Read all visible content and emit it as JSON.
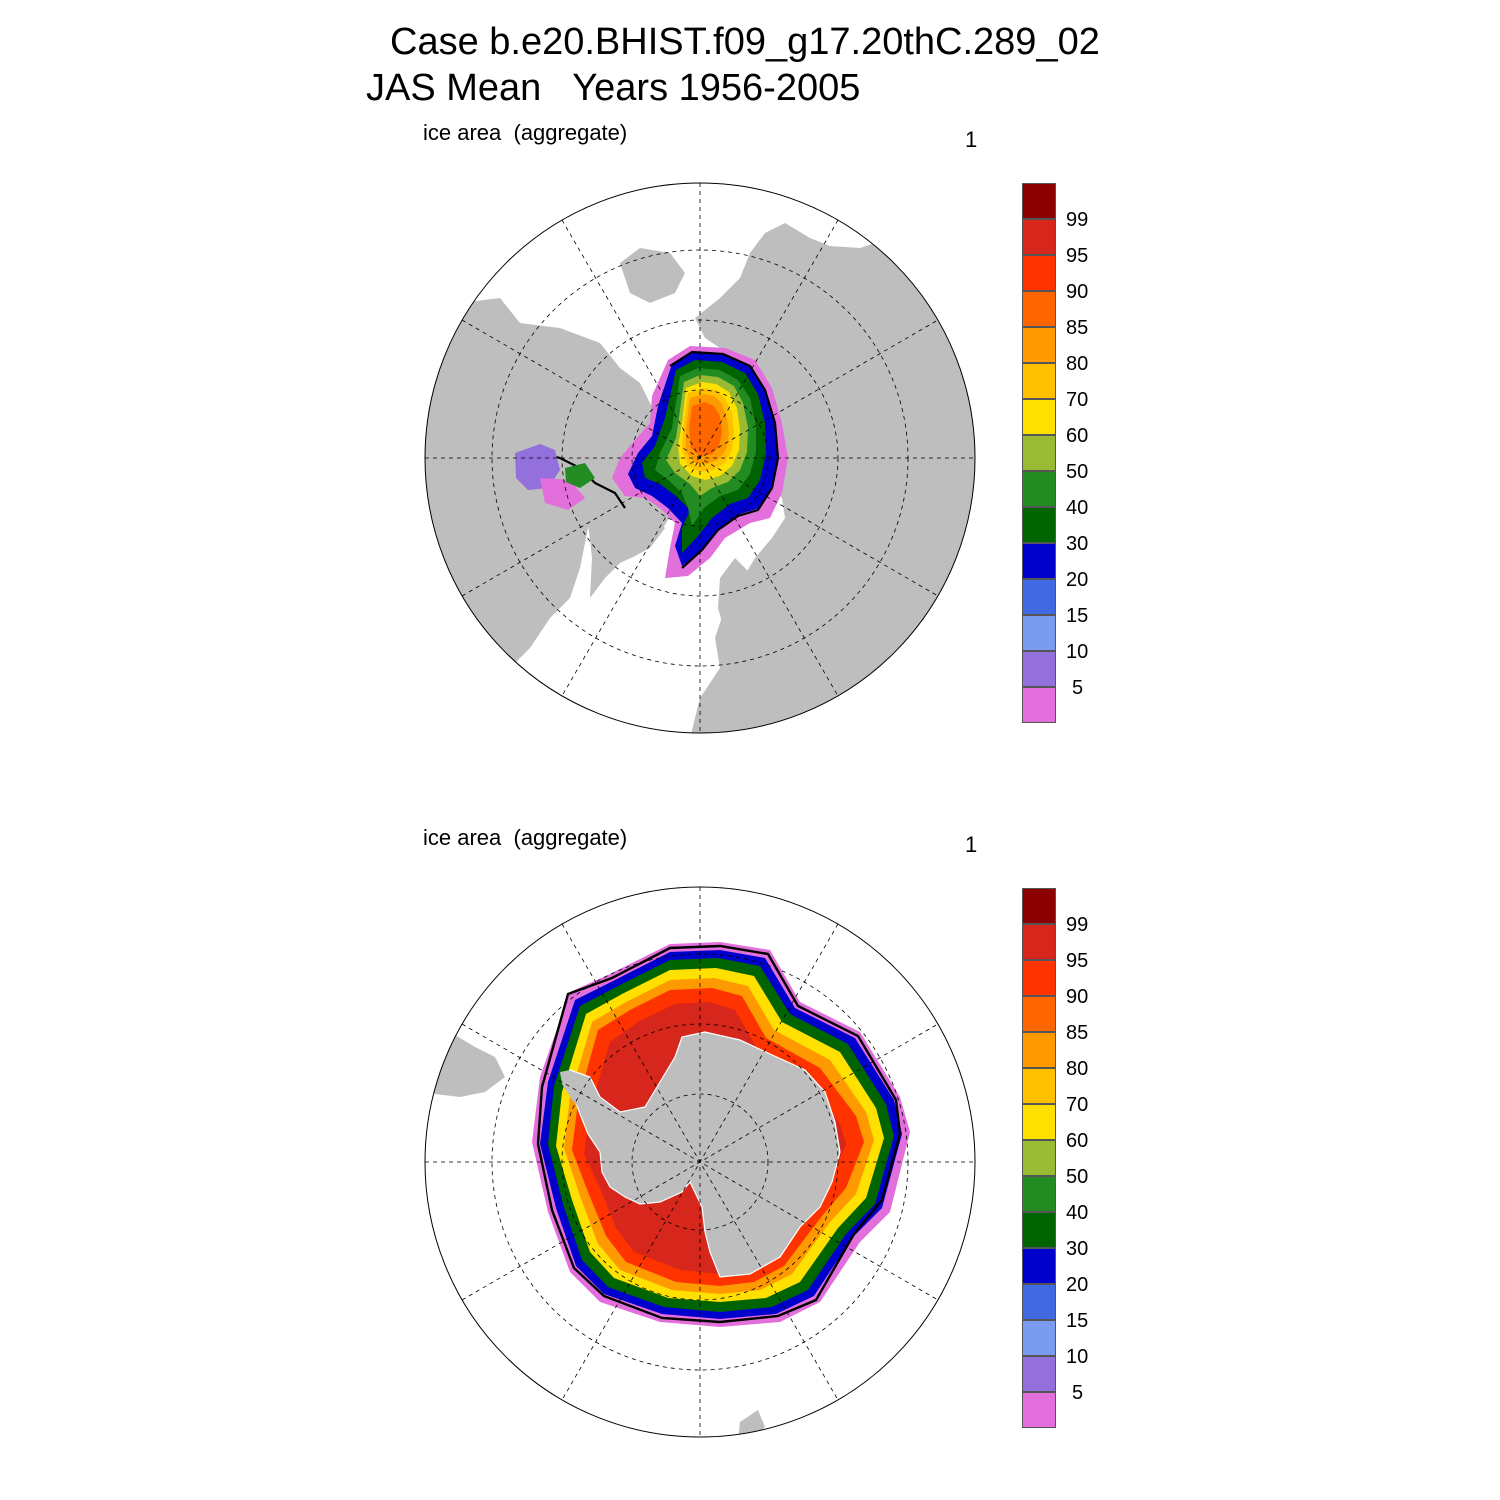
{
  "title": {
    "line1": "Case b.e20.BHIST.f09_g17.20thC.289_02",
    "line2": "JAS Mean   Years 1956-2005"
  },
  "panels": [
    {
      "id": "north",
      "left_label": "ice area  (aggregate)",
      "right_label": "1",
      "hemisphere": "Northern Hemisphere polar stereographic"
    },
    {
      "id": "south",
      "left_label": "ice area  (aggregate)",
      "right_label": "1",
      "hemisphere": "Southern Hemisphere polar stereographic"
    }
  ],
  "colorbar": {
    "levels": [
      "99",
      "95",
      "90",
      "85",
      "80",
      "70",
      "60",
      "50",
      "40",
      "30",
      "20",
      "15",
      "10",
      "5"
    ],
    "colors": [
      "#8b0000",
      "#d7261b",
      "#ff3300",
      "#ff6600",
      "#ff9900",
      "#ffc000",
      "#ffe000",
      "#99bb33",
      "#228b22",
      "#006400",
      "#0000cd",
      "#4169e1",
      "#7b9bf0",
      "#9370db",
      "#e36fdc"
    ]
  },
  "colors": {
    "land": "#bebebe",
    "ocean": "#ffffff"
  }
}
